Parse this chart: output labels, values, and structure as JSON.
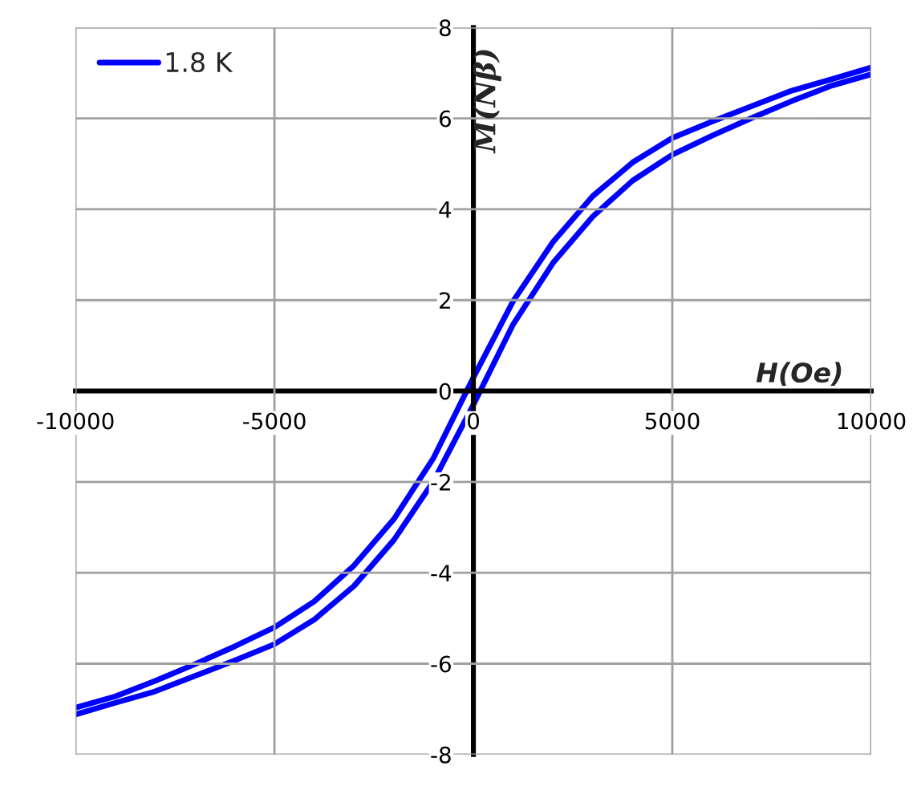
{
  "chart_data": {
    "type": "line",
    "xlabel": "H(Oe)",
    "ylabel": "M(Nβ)",
    "xlim": [
      -10000,
      10000
    ],
    "ylim": [
      -8,
      8
    ],
    "xticks": [
      -10000,
      -5000,
      0,
      5000,
      10000
    ],
    "yticks": [
      -8,
      -6,
      -4,
      -2,
      0,
      2,
      4,
      6,
      8
    ],
    "grid": true,
    "legend": "top left",
    "marker": "none",
    "line_style": "solid",
    "series": [
      {
        "name": "1.8 K",
        "color": "#0000ff",
        "x": [
          10000,
          9000,
          8000,
          7000,
          6000,
          5000,
          4000,
          3000,
          2000,
          1000,
          0,
          -1000,
          -2000,
          -3000,
          -4000,
          -5000,
          -6000,
          -7000,
          -8000,
          -9000,
          -10000
        ],
        "values": [
          7.12,
          6.86,
          6.61,
          6.27,
          5.93,
          5.57,
          5.03,
          4.29,
          3.28,
          1.98,
          0.3,
          -1.47,
          -2.82,
          -3.84,
          -4.63,
          -5.2,
          -5.62,
          -6.01,
          -6.38,
          -6.72,
          -6.97
        ]
      },
      {
        "color": "#0000ff",
        "x": [
          -10000,
          -9000,
          -8000,
          -7000,
          -6000,
          -5000,
          -4000,
          -3000,
          -2000,
          -1000,
          0,
          1000,
          2000,
          3000,
          4000,
          5000,
          6000,
          7000,
          8000,
          9000,
          10000
        ],
        "values": [
          -7.12,
          -6.86,
          -6.61,
          -6.27,
          -5.93,
          -5.57,
          -5.03,
          -4.29,
          -3.28,
          -1.98,
          -0.3,
          1.47,
          2.82,
          3.84,
          4.63,
          5.2,
          5.62,
          6.01,
          6.38,
          6.72,
          6.97
        ]
      }
    ]
  }
}
